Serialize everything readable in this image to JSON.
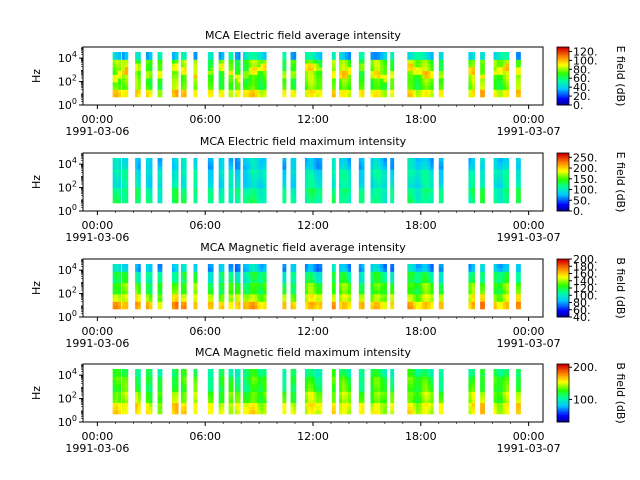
{
  "chart_data": [
    {
      "type": "heatmap",
      "title": "MCA  Electric field average intensity",
      "ylabel": "Hz",
      "y_scale": "log",
      "y_ticks": [
        "10^4",
        "10^2",
        "10^0"
      ],
      "x_ticks": [
        "00:00",
        "06:00",
        "12:00",
        "18:00",
        "00:00"
      ],
      "x_dates": [
        "1991-03-06",
        "1991-03-07"
      ],
      "colorbar": {
        "label": "E field (dB)",
        "range": [
          0,
          130
        ],
        "ticks": [
          "120.",
          "100.",
          "80.",
          "60.",
          "40.",
          "20.",
          "0."
        ]
      },
      "colormap": "rainbow",
      "profile": "elec_avg"
    },
    {
      "type": "heatmap",
      "title": "MCA  Electric field maximum intensity",
      "ylabel": "Hz",
      "y_scale": "log",
      "y_ticks": [
        "10^4",
        "10^2",
        "10^0"
      ],
      "x_ticks": [
        "00:00",
        "06:00",
        "12:00",
        "18:00",
        "00:00"
      ],
      "x_dates": [
        "1991-03-06",
        "1991-03-07"
      ],
      "colorbar": {
        "label": "E field (dB)",
        "range": [
          0,
          270
        ],
        "ticks": [
          "250.",
          "200.",
          "150.",
          "100.",
          "50.",
          "0."
        ]
      },
      "colormap": "rainbow",
      "profile": "elec_max"
    },
    {
      "type": "heatmap",
      "title": "MCA  Magnetic field average intensity",
      "ylabel": "Hz",
      "y_scale": "log",
      "y_ticks": [
        "10^4",
        "10^2",
        "10^0"
      ],
      "x_ticks": [
        "00:00",
        "06:00",
        "12:00",
        "18:00",
        "00:00"
      ],
      "x_dates": [
        "1991-03-06",
        "1991-03-07"
      ],
      "colorbar": {
        "label": "B field (dB)",
        "range": [
          40,
          200
        ],
        "ticks": [
          "200.",
          "180.",
          "160.",
          "140.",
          "120.",
          "100.",
          "80.",
          "60.",
          "40."
        ]
      },
      "colormap": "rainbow",
      "profile": "mag_avg"
    },
    {
      "type": "heatmap",
      "title": "MCA  Magnetic field maximum intensity",
      "ylabel": "Hz",
      "y_scale": "log",
      "y_ticks": [
        "10^4",
        "10^2",
        "10^0"
      ],
      "x_ticks": [
        "00:00",
        "06:00",
        "12:00",
        "18:00",
        "00:00"
      ],
      "x_dates": [
        "1991-03-06",
        "1991-03-07"
      ],
      "colorbar": {
        "label": "B field (dB)",
        "range": [
          30,
          210
        ],
        "ticks": [
          "200.",
          "100."
        ]
      },
      "colormap": "rainbow",
      "profile": "mag_max"
    }
  ],
  "data_coverage_hours": [
    [
      0.85,
      1.3
    ],
    [
      1.35,
      1.7
    ],
    [
      2.1,
      2.4
    ],
    [
      2.7,
      3.05
    ],
    [
      3.35,
      3.6
    ],
    [
      4.15,
      4.5
    ],
    [
      4.65,
      4.95
    ],
    [
      5.35,
      5.55
    ],
    [
      6.15,
      6.45
    ],
    [
      6.75,
      7.05
    ],
    [
      7.3,
      7.55
    ],
    [
      7.65,
      7.95
    ],
    [
      8.1,
      9.4
    ],
    [
      10.3,
      10.5
    ],
    [
      10.75,
      11.05
    ],
    [
      11.55,
      12.5
    ],
    [
      13.05,
      13.25
    ],
    [
      13.45,
      14.1
    ],
    [
      14.55,
      14.85
    ],
    [
      15.2,
      16.1
    ],
    [
      16.3,
      16.5
    ],
    [
      17.25,
      18.7
    ],
    [
      19.0,
      19.25
    ],
    [
      20.65,
      21.0
    ],
    [
      21.3,
      21.55
    ],
    [
      22.05,
      22.9
    ],
    [
      23.3,
      23.55
    ]
  ]
}
